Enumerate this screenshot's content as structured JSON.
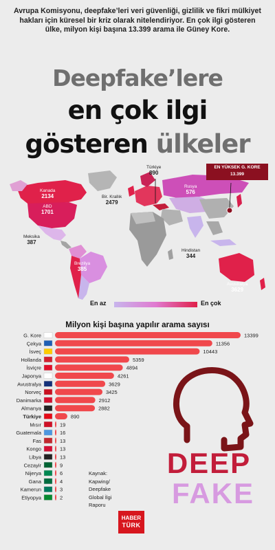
{
  "intro": "Avrupa Komisyonu, deepfake’leri veri güvenliği, gizlilik ve fikri mülkiyet hakları için küresel bir kriz olarak nitelendiriyor. En çok ilgi gösteren ülke, milyon kişi başına 13.399 arama ile Güney Kore.",
  "title": {
    "line1": "Deepfake’lere",
    "line2": "en çok ilgi",
    "line3a": "gösteren",
    "line3b": "ülkeler"
  },
  "map": {
    "labels": {
      "kanada": {
        "name": "Kanada",
        "value": "2134"
      },
      "abd": {
        "name": "ABD",
        "value": "1701"
      },
      "meksika": {
        "name": "Meksika",
        "value": "387"
      },
      "brezilya": {
        "name": "Brezilya",
        "value": "385"
      },
      "kralik": {
        "name": "Bir. Krallık",
        "value": "2479"
      },
      "turkiye": {
        "name": "Türkiye",
        "value": "890"
      },
      "rusya": {
        "name": "Rusya",
        "value": "576"
      },
      "hindistan": {
        "name": "Hindistan",
        "value": "344"
      },
      "avustralya": {
        "name": "Avustralya",
        "value": "3629"
      }
    },
    "top_box": {
      "line1": "EN YÜKSEK G. KORE",
      "line2": "13.399"
    },
    "legend": {
      "low": "En az",
      "high": "En çok"
    },
    "colors": {
      "low": "#c8b5ec",
      "mid": "#e07ad0",
      "high": "#e0214a",
      "no_data": "#8f8f8f"
    }
  },
  "chart_data": {
    "type": "bar",
    "title": "Milyon kişi başına yapılır arama sayısı",
    "categories": [
      "G. Kore",
      "Çekya",
      "İsveç",
      "Hollanda",
      "İsviçre",
      "Japonya",
      "Avustralya",
      "Norveç",
      "Danimarka",
      "Almanya",
      "Türkiye",
      "Mısır",
      "Guatemala",
      "Fas",
      "Kongo",
      "Libya",
      "Cezayir",
      "Nijerya",
      "Gana",
      "Kamerun",
      "Etiyopya"
    ],
    "values": [
      13399,
      11356,
      10443,
      5359,
      4894,
      4261,
      3629,
      3425,
      2912,
      2882,
      890,
      19,
      16,
      13,
      13,
      13,
      9,
      6,
      4,
      3,
      2
    ],
    "highlight": "Türkiye",
    "bar_color": "#f0484c",
    "orientation": "horizontal"
  },
  "deepfake_graphic": {
    "word1": "DEEP",
    "word2": "FAKE",
    "color1": "#c21d3a",
    "color2": "#d79ae0"
  },
  "source": {
    "line1": "Kaynak:",
    "line2": "Kapwing/",
    "line3": "Deepfake",
    "line4": "Global İlgi",
    "line5": "Raporu"
  },
  "logo": {
    "line1": "HABER",
    "line2": "TÜRK"
  }
}
